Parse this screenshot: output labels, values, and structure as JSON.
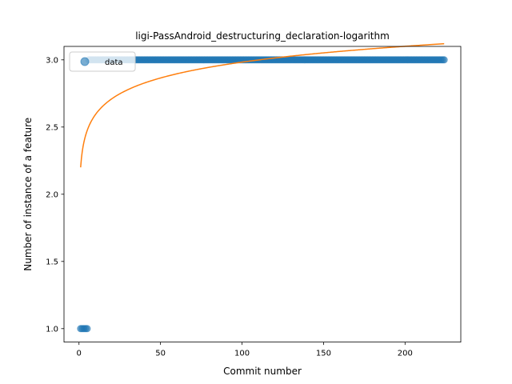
{
  "chart_data": {
    "type": "scatter",
    "title": "ligi-PassAndroid_destructuring_declaration-logarithm",
    "xlabel": "Commit number",
    "ylabel": "Number of instance of a feature",
    "xlim": [
      -9.2,
      234.2
    ],
    "ylim": [
      0.9,
      3.1
    ],
    "xticks": [
      0,
      50,
      100,
      150,
      200
    ],
    "yticks": [
      1.0,
      1.5,
      2.0,
      2.5,
      3.0
    ],
    "xtick_labels": [
      "0",
      "50",
      "100",
      "150",
      "200"
    ],
    "ytick_labels": [
      "1.0",
      "1.5",
      "2.0",
      "2.5",
      "3.0"
    ],
    "legend": {
      "placement": "top-left",
      "entries": [
        "data"
      ]
    },
    "grid": false,
    "series": [
      {
        "name": "data",
        "kind": "scatter",
        "color": "#1f77b4",
        "segments": [
          {
            "x_start": 1,
            "x_end": 5,
            "y": 1.0
          },
          {
            "x_start": 6,
            "x_end": 224,
            "y": 3.0
          }
        ]
      },
      {
        "kind": "line",
        "color": "#ff7f0e",
        "fit": {
          "form": "a + b*ln(x)",
          "a": 2.2,
          "b": 0.17
        },
        "x_range": [
          1,
          224
        ]
      }
    ]
  }
}
